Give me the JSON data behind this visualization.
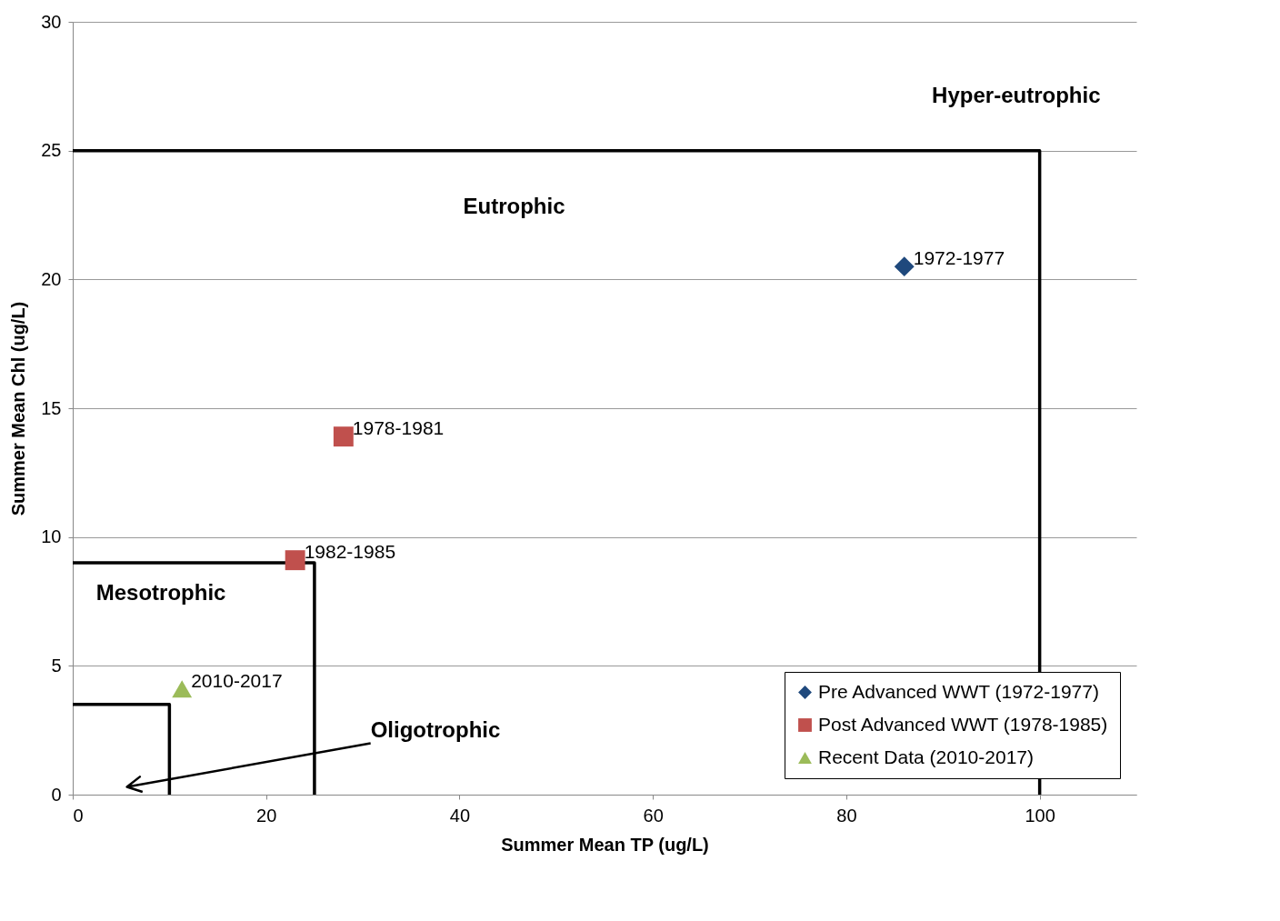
{
  "chart_data": {
    "type": "scatter",
    "xlabel": "Summer Mean TP (ug/L)",
    "ylabel": "Summer Mean Chl (ug/L)",
    "xlim": [
      0,
      110
    ],
    "xticks": [
      0,
      20,
      40,
      60,
      80,
      100
    ],
    "ylim": [
      0,
      30
    ],
    "yticks": [
      0,
      5,
      10,
      15,
      20,
      25,
      30
    ],
    "grid": "y",
    "legend": "bottom right",
    "series": [
      {
        "type": "line",
        "color": "#000000",
        "x": [
          0,
          100,
          100
        ],
        "values": [
          25,
          25,
          0
        ]
      },
      {
        "type": "line",
        "color": "#000000",
        "x": [
          0,
          25,
          25
        ],
        "values": [
          9,
          9,
          0
        ]
      },
      {
        "type": "line",
        "color": "#000000",
        "x": [
          0,
          10,
          10
        ],
        "values": [
          3.5,
          3.5,
          0
        ]
      },
      {
        "name": "Pre Advanced WWT (1972-1977)",
        "color": "#1f497d",
        "marker": "diamond",
        "x": [
          86
        ],
        "values": [
          20.5
        ],
        "value_labels": [
          "1972-1977"
        ]
      },
      {
        "name": "Post Advanced WWT (1978-1985)",
        "color": "#c0504d",
        "marker": "square",
        "x": [
          28,
          23
        ],
        "values": [
          13.9,
          9.1
        ],
        "value_labels": [
          "1978-1981",
          "1982-1985"
        ]
      },
      {
        "name": "Recent Data (2010-2017)",
        "color": "#9bbb59",
        "marker": "triangle",
        "x": [
          11.3
        ],
        "values": [
          4.1
        ],
        "value_labels": [
          "2010-2017"
        ]
      }
    ],
    "annotations": [
      "Hyper-eutrophic",
      "Eutrophic",
      "Mesotrophic",
      "Oligotrophic"
    ]
  }
}
